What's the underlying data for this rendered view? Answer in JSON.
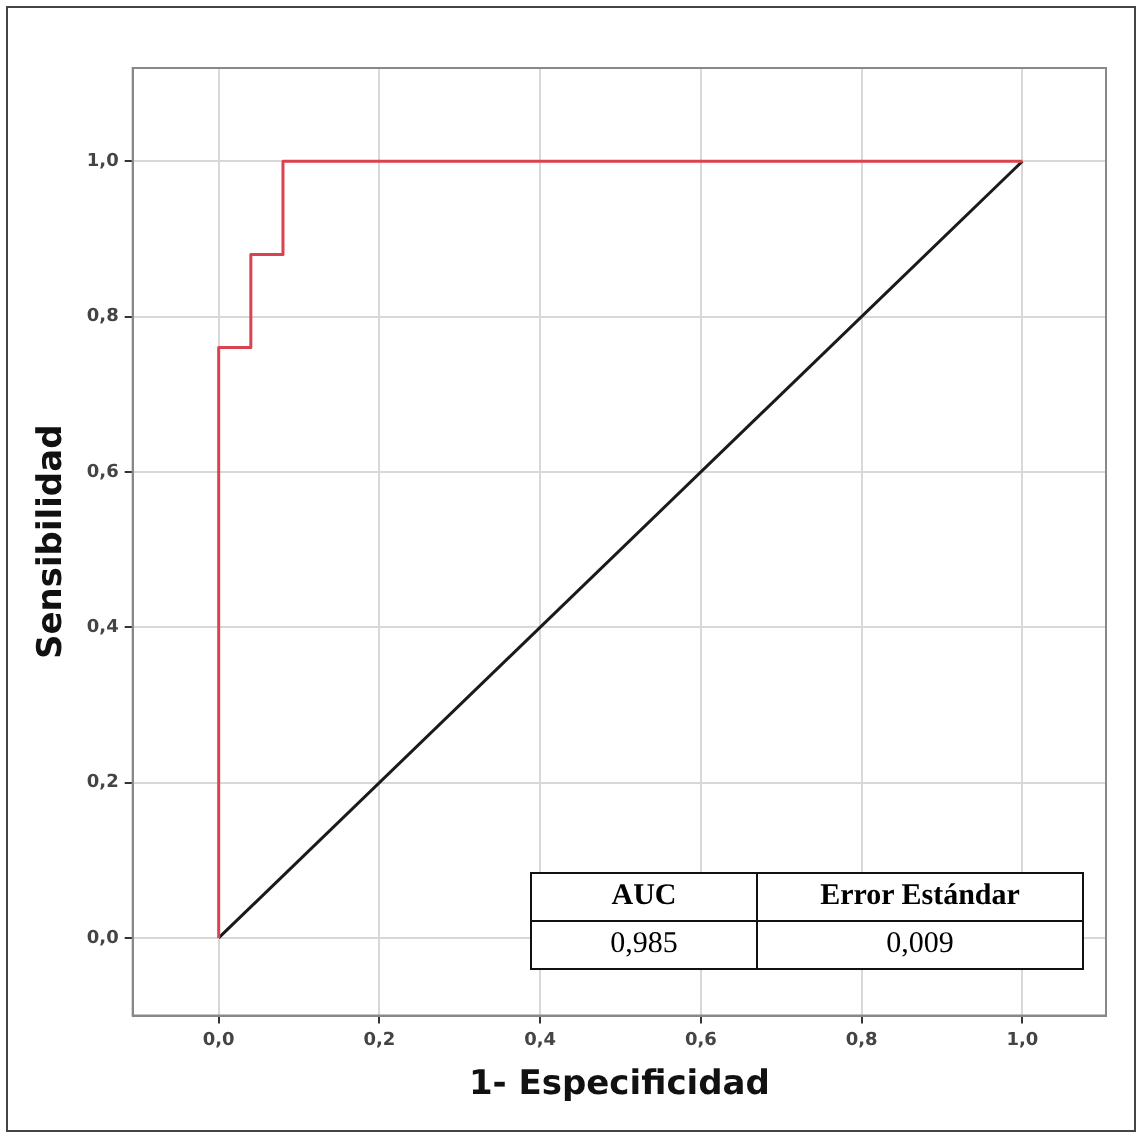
{
  "chart_data": {
    "type": "line",
    "xlabel": "1- Especificidad",
    "ylabel": "Sensibilidad",
    "series": [
      {
        "color": "#d9434f",
        "x": [
          0,
          0,
          0.04,
          0.04,
          0.08,
          0.08,
          1
        ],
        "values": [
          0,
          0.76,
          0.76,
          0.88,
          0.88,
          1,
          1
        ]
      },
      {
        "color": "#1a1a1a",
        "x": [
          0,
          1
        ],
        "values": [
          0,
          1
        ]
      }
    ],
    "xlim": [
      -0.107,
      1.104
    ],
    "ylim": [
      -0.1,
      1.12
    ],
    "xticks": [
      {
        "value": 0,
        "label": "0,0"
      },
      {
        "value": 0.2,
        "label": "0,2"
      },
      {
        "value": 0.4,
        "label": "0,4"
      },
      {
        "value": 0.6,
        "label": "0,6"
      },
      {
        "value": 0.8,
        "label": "0,8"
      },
      {
        "value": 1,
        "label": "1,0"
      }
    ],
    "yticks": [
      {
        "value": 0,
        "label": "0,0"
      },
      {
        "value": 0.2,
        "label": "0,2"
      },
      {
        "value": 0.4,
        "label": "0,4"
      },
      {
        "value": 0.6,
        "label": "0,6"
      },
      {
        "value": 0.8,
        "label": "0,8"
      },
      {
        "value": 1,
        "label": "1,0"
      }
    ],
    "grid": true,
    "marker": "none",
    "line_style": "solid",
    "annotations": [
      "AUC",
      "Error Estándar",
      "0,985",
      "0,009"
    ]
  }
}
